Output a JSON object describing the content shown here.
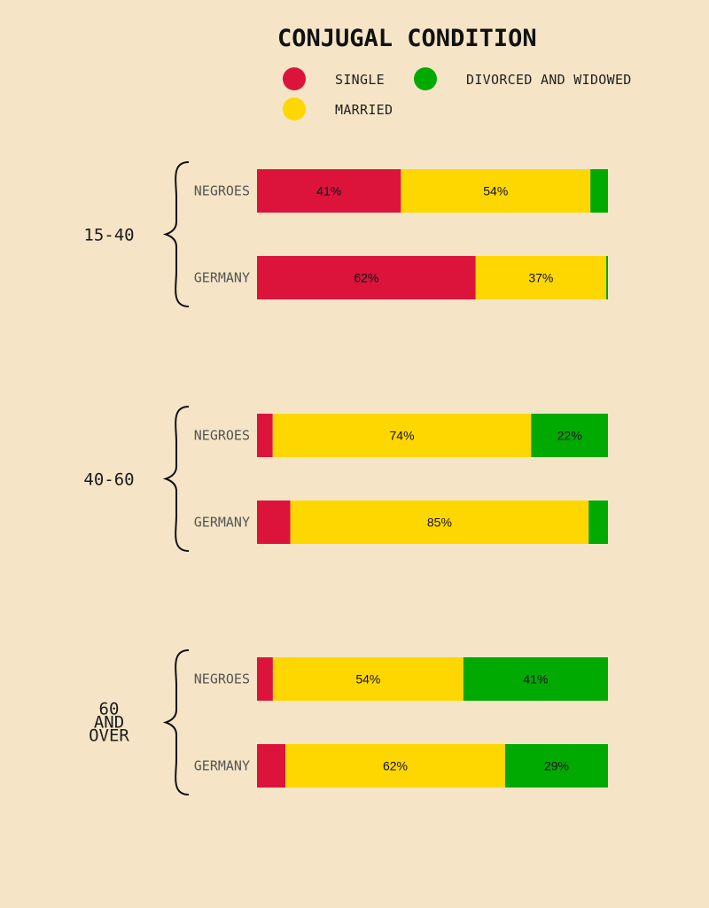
{
  "chart_data": {
    "type": "bar",
    "orientation": "horizontal",
    "stacked": true,
    "title": "CONJUGAL CONDITION",
    "xlabel": "",
    "ylabel": "",
    "xlim": [
      0,
      100
    ],
    "legend": [
      {
        "key": "single",
        "label": "SINGLE",
        "color": "#dc143c"
      },
      {
        "key": "married",
        "label": "MARRIED",
        "color": "#ffd700"
      },
      {
        "key": "divorced",
        "label": "DIVORCED AND WIDOWED",
        "color": "#00aa00"
      }
    ],
    "groups": [
      {
        "label": [
          "15-40"
        ],
        "rows": [
          {
            "label": "NEGROES",
            "values": {
              "single": 41,
              "married": 54,
              "divorced": 5
            },
            "shown": {
              "single": "41%",
              "married": "54%"
            }
          },
          {
            "label": "GERMANY",
            "values": {
              "single": 62,
              "married": 37,
              "divorced": 0.5
            },
            "shown": {
              "single": "62%",
              "married": "37%"
            }
          }
        ]
      },
      {
        "label": [
          "40-60"
        ],
        "rows": [
          {
            "label": "NEGROES",
            "values": {
              "single": 4.5,
              "married": 74,
              "divorced": 22
            },
            "shown": {
              "married": "74%",
              "divorced": "22%"
            }
          },
          {
            "label": "GERMANY",
            "values": {
              "single": 9.5,
              "married": 85,
              "divorced": 5.5
            },
            "shown": {
              "married": "85%"
            }
          }
        ]
      },
      {
        "label": [
          "60",
          "AND",
          "OVER"
        ],
        "rows": [
          {
            "label": "NEGROES",
            "values": {
              "single": 4.5,
              "married": 54,
              "divorced": 41
            },
            "shown": {
              "married": "54%",
              "divorced": "41%"
            }
          },
          {
            "label": "GERMANY",
            "values": {
              "single": 8,
              "married": 62,
              "divorced": 29
            },
            "shown": {
              "married": "62%",
              "divorced": "29%"
            }
          }
        ]
      }
    ]
  }
}
